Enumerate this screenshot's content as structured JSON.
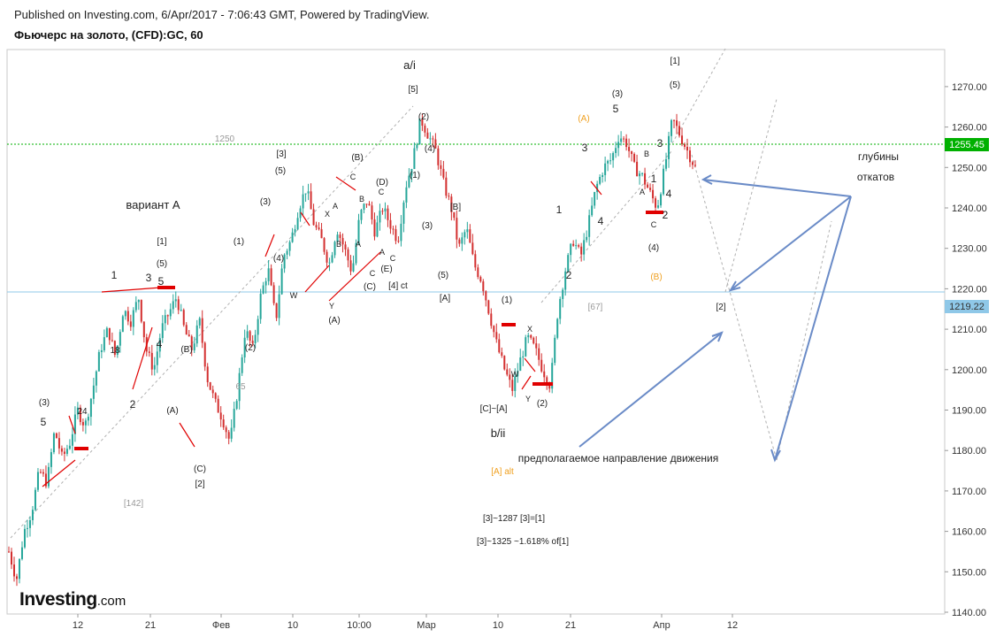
{
  "header": {
    "published": "Published on Investing.com, 6/Apr/2017 - 7:06:43 GMT, Powered by TradingView.",
    "symbol": "Фьючерс на золото, (CFD):GC, 60"
  },
  "logo": {
    "brand": "Investing",
    "suffix": ".com"
  },
  "chart_data": {
    "type": "candlestick",
    "ylim": [
      1140,
      1280
    ],
    "y_ticks": [
      "1140.00",
      "1150.00",
      "1160.00",
      "1170.00",
      "1180.00",
      "1190.00",
      "1200.00",
      "1210.00",
      "1220.00",
      "1230.00",
      "1240.00",
      "1250.00",
      "1260.00",
      "1270.00"
    ],
    "x_ticks": [
      "12",
      "21",
      "Фев",
      "10",
      "10:00",
      "Мар",
      "10",
      "21",
      "Апр",
      "12"
    ],
    "last_price": "1255.45",
    "level_price": "1219.22",
    "price_path": [
      1155,
      1148,
      1160,
      1165,
      1175,
      1172,
      1185,
      1178,
      1182,
      1190,
      1186,
      1195,
      1205,
      1210,
      1203,
      1215,
      1212,
      1218,
      1205,
      1200,
      1210,
      1214,
      1218,
      1210,
      1205,
      1212,
      1198,
      1192,
      1188,
      1182,
      1195,
      1210,
      1205,
      1218,
      1225,
      1212,
      1228,
      1232,
      1240,
      1245,
      1236,
      1232,
      1226,
      1235,
      1230,
      1224,
      1238,
      1242,
      1234,
      1240,
      1236,
      1232,
      1245,
      1252,
      1262,
      1258,
      1254,
      1246,
      1240,
      1230,
      1235,
      1226,
      1222,
      1214,
      1206,
      1200,
      1195,
      1202,
      1208,
      1205,
      1200,
      1196,
      1215,
      1225,
      1232,
      1228,
      1236,
      1245,
      1250,
      1252,
      1258,
      1256,
      1250,
      1248,
      1244,
      1240,
      1250,
      1262,
      1258,
      1254,
      1250
    ],
    "annotations": [
      "a/i",
      "[5]",
      "[1]",
      "(5)",
      "5",
      "3",
      "1",
      "вариант A",
      "(3)",
      "5",
      "24",
      "18",
      "2",
      "4",
      "(B)",
      "(A)",
      "(C)",
      "[2]",
      "[142]",
      "65",
      "(2)",
      "(1)",
      "(3)",
      "[3]",
      "(5)",
      "(4)",
      "W",
      "(B)",
      "C",
      "X",
      "A",
      "B",
      "A",
      "Y",
      "(A)",
      "B",
      "C",
      "(D)",
      "C",
      "(E)",
      "A",
      "C",
      "(C)",
      "[4] ct",
      "(2)",
      "(4)",
      "(1)",
      "(3)",
      "[B]",
      "(5)",
      "[A]",
      "(1)",
      "X",
      "W",
      "Y",
      "(2)",
      "[C]~[A]",
      "b/ii",
      "[A] alt",
      "(A)",
      "3",
      "5",
      "(3)",
      "1",
      "2",
      "4",
      "B",
      "A",
      "C",
      "3",
      "1",
      "4",
      "2",
      "(5)",
      "[1]",
      "(4)",
      "(B)",
      "[67]",
      "[2]",
      "1250",
      "глубины",
      "откатов",
      "предполагаемое направление движения",
      "[3]~1287 [3]=[1]",
      "[3]~1325 ~1.618% of[1]"
    ],
    "colors": {
      "up": "#26a69a",
      "down": "#d32f2f",
      "target_line": "#6a8bc7",
      "level_line": "#8fc8e8",
      "last_line": "#00b000",
      "marker": "#e00000"
    }
  }
}
